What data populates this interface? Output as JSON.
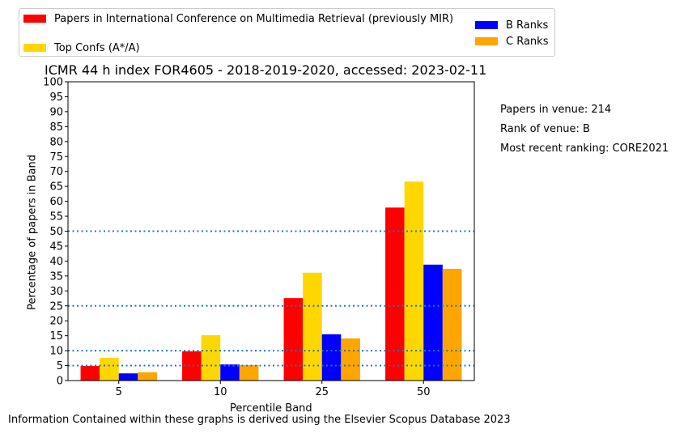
{
  "chart_data": {
    "type": "bar",
    "title": "ICMR 44 h index FOR4605 - 2018-2019-2020, accessed: 2023-02-11",
    "xlabel": "Percentile Band",
    "ylabel": "Percentage of papers in Band",
    "categories": [
      "5",
      "10",
      "25",
      "50"
    ],
    "ylim": [
      0,
      100
    ],
    "yticks": [
      "0",
      "5",
      "10",
      "15",
      "20",
      "25",
      "30",
      "35",
      "40",
      "45",
      "50",
      "55",
      "60",
      "65",
      "70",
      "75",
      "80",
      "85",
      "90",
      "95",
      "100"
    ],
    "reference_lines": [
      5,
      10,
      25,
      50
    ],
    "series": [
      {
        "name": "Papers in International Conference on Multimedia Retrieval (previously MIR)",
        "color": "#ff0000",
        "values": [
          4.9,
          9.8,
          27.6,
          57.9
        ]
      },
      {
        "name": "Top Confs (A*/A)",
        "color": "#ffd700",
        "values": [
          7.6,
          15.2,
          36.1,
          66.6
        ]
      },
      {
        "name": "B Ranks",
        "color": "#0000ff",
        "values": [
          2.4,
          5.4,
          15.5,
          38.8
        ]
      },
      {
        "name": "C Ranks",
        "color": "#ffa500",
        "values": [
          2.8,
          5.2,
          14.1,
          37.4
        ]
      }
    ],
    "legend_position": "top-left"
  },
  "side_info": {
    "papers": "Papers in venue: 214",
    "rank": "Rank of venue: B",
    "recent": "Most recent ranking: CORE2021"
  },
  "footer": "Information Contained within these graphs is derived using the Elsevier Scopus Database 2023"
}
